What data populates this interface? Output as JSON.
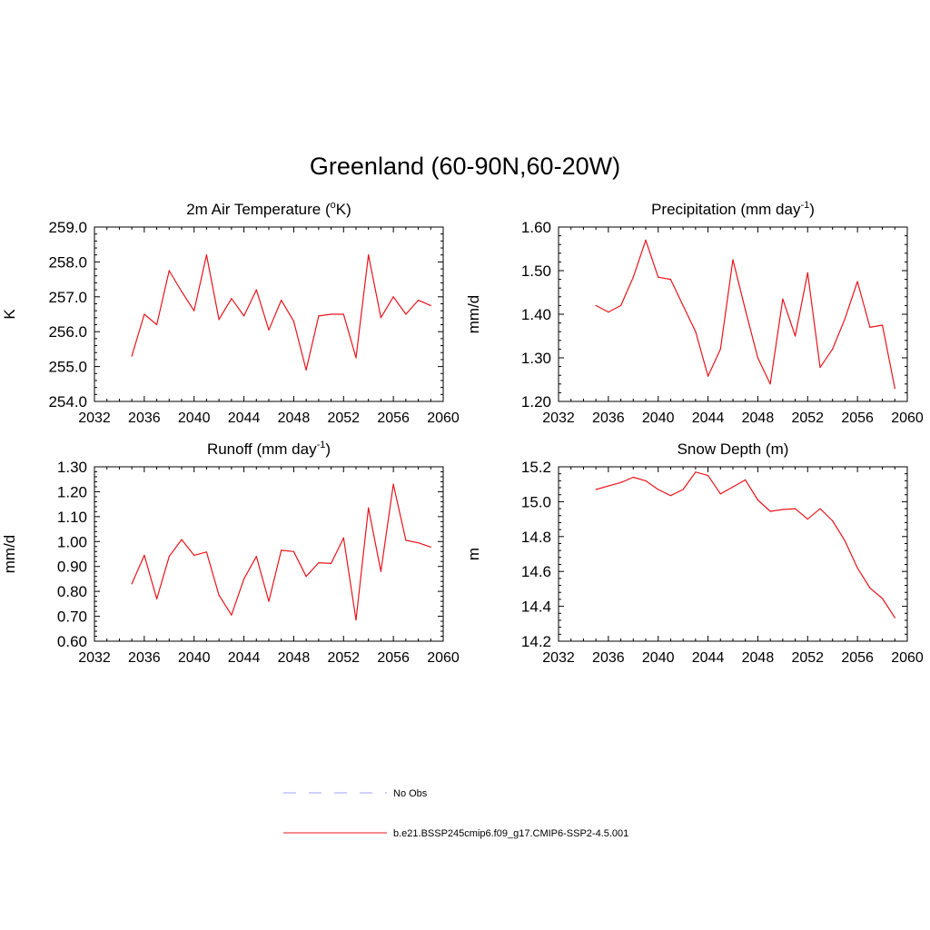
{
  "title": "Greenland (60-90N,60-20W)",
  "colors": {
    "series": "#e8141c",
    "obs": "#a0a0ff",
    "axis": "#000000"
  },
  "legend": {
    "placement": "bottom-center",
    "entries": [
      {
        "label": "No Obs",
        "color": "#a0a0ff",
        "dash": true
      },
      {
        "label": "b.e21.BSSP245cmip6.f09_g17.CMIP6-SSP2-4.5.001",
        "color": "#e8141c",
        "dash": false
      }
    ]
  },
  "chart_data": [
    {
      "type": "line",
      "title": "2m Air Temperature (",
      "title_sup": "o",
      "title_after": "K)",
      "ylabel": "K",
      "xlim": [
        2032,
        2060
      ],
      "xticks": [
        "2032",
        "2036",
        "2040",
        "2044",
        "2048",
        "2052",
        "2056",
        "2060"
      ],
      "ylim": [
        254.0,
        259.0
      ],
      "yticks": [
        "254.0",
        "255.0",
        "256.0",
        "257.0",
        "258.0",
        "259.0"
      ],
      "grid": false,
      "series": [
        {
          "x": [
            2035,
            2036,
            2037,
            2038,
            2039,
            2040,
            2041,
            2042,
            2043,
            2044,
            2045,
            2046,
            2047,
            2048,
            2049,
            2050,
            2051,
            2052,
            2053,
            2054,
            2055,
            2056,
            2057,
            2058,
            2059
          ],
          "values": [
            255.3,
            256.5,
            256.2,
            257.75,
            257.15,
            256.6,
            258.2,
            256.35,
            256.95,
            256.45,
            257.2,
            256.05,
            256.9,
            256.3,
            254.9,
            256.45,
            256.5,
            256.5,
            255.25,
            258.2,
            256.4,
            257.0,
            256.5,
            256.9,
            256.75
          ]
        }
      ]
    },
    {
      "type": "line",
      "title": "Precipitation (mm day",
      "title_sup": "-1",
      "title_after": ")",
      "ylabel": "mm/d",
      "xlim": [
        2032,
        2060
      ],
      "xticks": [
        "2032",
        "2036",
        "2040",
        "2044",
        "2048",
        "2052",
        "2056",
        "2060"
      ],
      "ylim": [
        1.2,
        1.6
      ],
      "yticks": [
        "1.20",
        "1.30",
        "1.40",
        "1.50",
        "1.60"
      ],
      "grid": false,
      "series": [
        {
          "x": [
            2035,
            2036,
            2037,
            2038,
            2039,
            2040,
            2041,
            2042,
            2043,
            2044,
            2045,
            2046,
            2047,
            2048,
            2049,
            2050,
            2051,
            2052,
            2053,
            2054,
            2055,
            2056,
            2057,
            2058,
            2059
          ],
          "values": [
            1.42,
            1.405,
            1.42,
            1.485,
            1.57,
            1.485,
            1.48,
            1.42,
            1.36,
            1.258,
            1.32,
            1.525,
            1.41,
            1.3,
            1.24,
            1.435,
            1.35,
            1.495,
            1.278,
            1.32,
            1.39,
            1.475,
            1.37,
            1.375,
            1.23
          ]
        }
      ]
    },
    {
      "type": "line",
      "title": "Runoff (mm day",
      "title_sup": "-1",
      "title_after": ")",
      "ylabel": "mm/d",
      "xlim": [
        2032,
        2060
      ],
      "xticks": [
        "2032",
        "2036",
        "2040",
        "2044",
        "2048",
        "2052",
        "2056",
        "2060"
      ],
      "ylim": [
        0.6,
        1.3
      ],
      "yticks": [
        "0.60",
        "0.70",
        "0.80",
        "0.90",
        "1.00",
        "1.10",
        "1.20",
        "1.30"
      ],
      "grid": false,
      "series": [
        {
          "x": [
            2035,
            2036,
            2037,
            2038,
            2039,
            2040,
            2041,
            2042,
            2043,
            2044,
            2045,
            2046,
            2047,
            2048,
            2049,
            2050,
            2051,
            2052,
            2053,
            2054,
            2055,
            2056,
            2057,
            2058,
            2059
          ],
          "values": [
            0.83,
            0.945,
            0.77,
            0.94,
            1.008,
            0.945,
            0.958,
            0.785,
            0.705,
            0.85,
            0.94,
            0.76,
            0.965,
            0.96,
            0.86,
            0.915,
            0.912,
            1.015,
            0.685,
            1.135,
            0.88,
            1.23,
            1.005,
            0.995,
            0.978
          ]
        }
      ]
    },
    {
      "type": "line",
      "title": "Snow Depth (m)",
      "title_sup": "",
      "title_after": "",
      "ylabel": "m",
      "xlim": [
        2032,
        2060
      ],
      "xticks": [
        "2032",
        "2036",
        "2040",
        "2044",
        "2048",
        "2052",
        "2056",
        "2060"
      ],
      "ylim": [
        14.2,
        15.2
      ],
      "yticks": [
        "14.2",
        "14.4",
        "14.6",
        "14.8",
        "15.0",
        "15.2"
      ],
      "grid": false,
      "series": [
        {
          "x": [
            2035,
            2036,
            2037,
            2038,
            2039,
            2040,
            2041,
            2042,
            2043,
            2044,
            2045,
            2046,
            2047,
            2048,
            2049,
            2050,
            2051,
            2052,
            2053,
            2054,
            2055,
            2056,
            2057,
            2058,
            2059
          ],
          "values": [
            15.07,
            15.09,
            15.11,
            15.14,
            15.12,
            15.07,
            15.035,
            15.07,
            15.17,
            15.15,
            15.045,
            15.085,
            15.125,
            15.01,
            14.945,
            14.955,
            14.96,
            14.9,
            14.96,
            14.89,
            14.775,
            14.62,
            14.505,
            14.445,
            14.335
          ]
        }
      ]
    }
  ]
}
